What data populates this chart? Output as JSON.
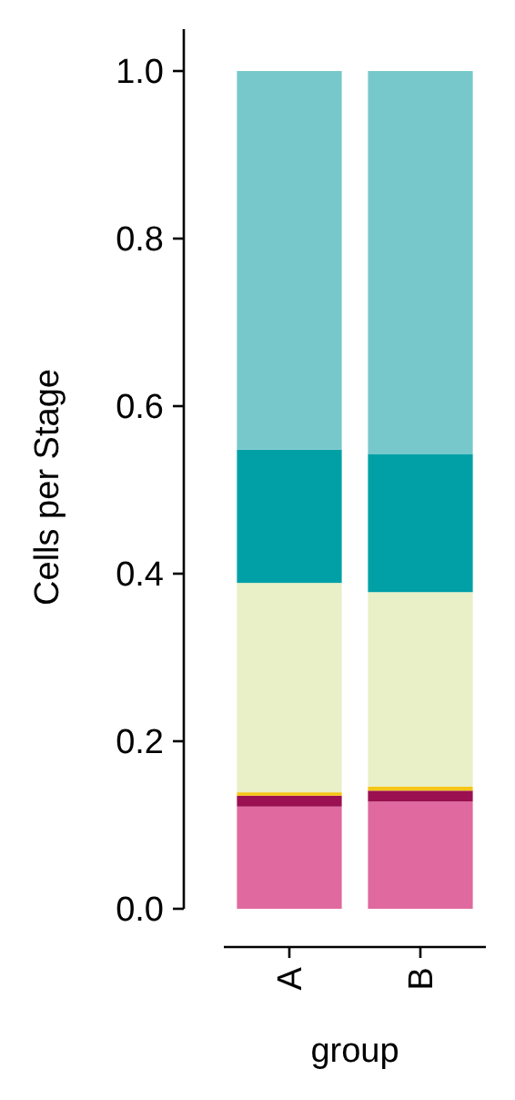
{
  "chart_data": {
    "type": "bar",
    "stacked": true,
    "xlabel": "group",
    "ylabel": "Cells per Stage",
    "categories": [
      "A",
      "B"
    ],
    "series": [
      {
        "color": "#e0699f",
        "values": [
          0.122,
          0.128
        ]
      },
      {
        "color": "#9a1050",
        "values": [
          0.013,
          0.013
        ]
      },
      {
        "color": "#f5c518",
        "values": [
          0.004,
          0.005
        ]
      },
      {
        "color": "#e9efc6",
        "values": [
          0.25,
          0.232
        ]
      },
      {
        "color": "#01a0a7",
        "values": [
          0.159,
          0.165
        ]
      },
      {
        "color": "#77c8cb",
        "values": [
          0.452,
          0.457
        ]
      }
    ],
    "ylim": [
      0,
      1.05
    ],
    "yticks": [
      {
        "value": 0,
        "label": "0.0"
      },
      {
        "value": 0.2,
        "label": "0.2"
      },
      {
        "value": 0.4,
        "label": "0.4"
      },
      {
        "value": 0.6,
        "label": "0.6"
      },
      {
        "value": 0.8,
        "label": "0.8"
      },
      {
        "value": 1,
        "label": "1.0"
      }
    ],
    "tick_labels": "xy"
  }
}
